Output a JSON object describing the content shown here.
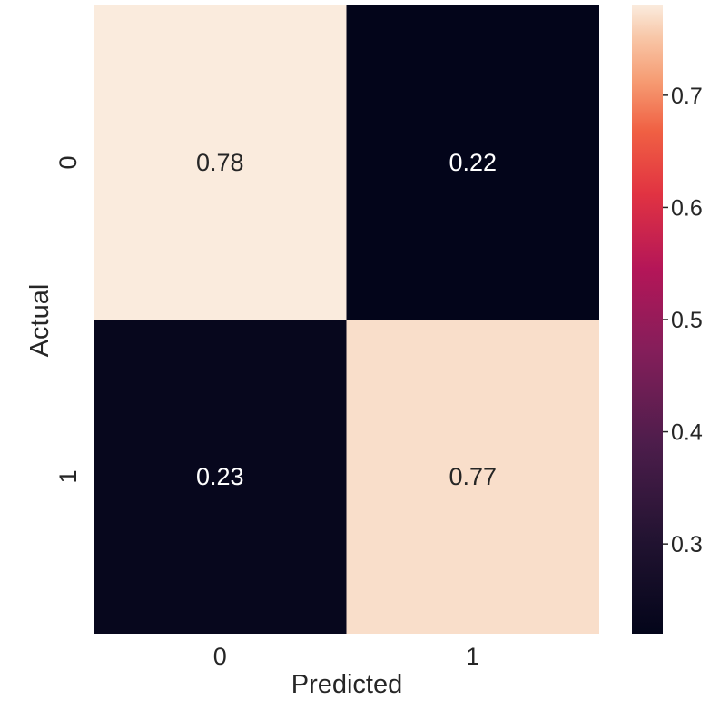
{
  "chart_data": {
    "type": "heatmap",
    "xlabel": "Predicted",
    "ylabel": "Actual",
    "x_categories": [
      "0",
      "1"
    ],
    "y_categories": [
      "0",
      "1"
    ],
    "values": [
      [
        0.78,
        0.22
      ],
      [
        0.23,
        0.77
      ]
    ],
    "annotations": [
      [
        "0.78",
        "0.22"
      ],
      [
        "0.23",
        "0.77"
      ]
    ],
    "colormap": "rocket",
    "colorbar": {
      "range": [
        0.22,
        0.78
      ],
      "ticks": [
        0.3,
        0.4,
        0.5,
        0.6,
        0.7
      ],
      "tick_labels": [
        "0.3",
        "0.4",
        "0.5",
        "0.6",
        "0.7"
      ]
    },
    "grid": false,
    "colorbar_placement": "right"
  }
}
